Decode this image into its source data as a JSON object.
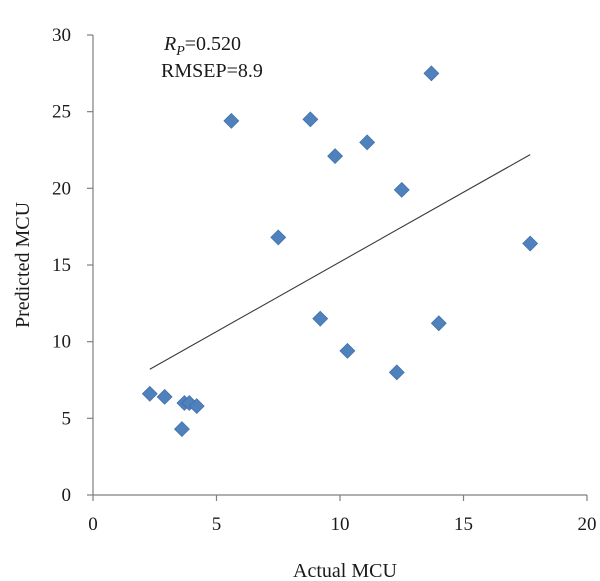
{
  "chart_data": {
    "type": "scatter",
    "xlabel": "Actual MCU",
    "ylabel": "Predicted MCU",
    "xlim": [
      0,
      20
    ],
    "ylim": [
      0,
      30
    ],
    "x_ticks": [
      0,
      5,
      10,
      15,
      20
    ],
    "y_ticks": [
      0,
      5,
      10,
      15,
      20,
      25,
      30
    ],
    "annotation": {
      "rp_symbol": "R",
      "rp_subscript": "P",
      "rp_value": "=0.520",
      "rmsep": "RMSEP=8.9"
    },
    "points": [
      {
        "x": 2.3,
        "y": 6.6
      },
      {
        "x": 2.9,
        "y": 6.4
      },
      {
        "x": 3.6,
        "y": 4.3
      },
      {
        "x": 3.7,
        "y": 6.0
      },
      {
        "x": 3.9,
        "y": 6.0
      },
      {
        "x": 4.2,
        "y": 5.8
      },
      {
        "x": 5.6,
        "y": 24.4
      },
      {
        "x": 7.5,
        "y": 16.8
      },
      {
        "x": 8.8,
        "y": 24.5
      },
      {
        "x": 9.2,
        "y": 11.5
      },
      {
        "x": 9.8,
        "y": 22.1
      },
      {
        "x": 10.3,
        "y": 9.4
      },
      {
        "x": 11.1,
        "y": 23.0
      },
      {
        "x": 12.3,
        "y": 8.0
      },
      {
        "x": 12.5,
        "y": 19.9
      },
      {
        "x": 13.7,
        "y": 27.5
      },
      {
        "x": 14.0,
        "y": 11.2
      },
      {
        "x": 17.7,
        "y": 16.4
      }
    ],
    "trendline": {
      "x": [
        2.3,
        17.7
      ],
      "y": [
        8.2,
        22.2
      ]
    },
    "marker_color": "#4f81bd",
    "grid": false,
    "legend": "none"
  }
}
